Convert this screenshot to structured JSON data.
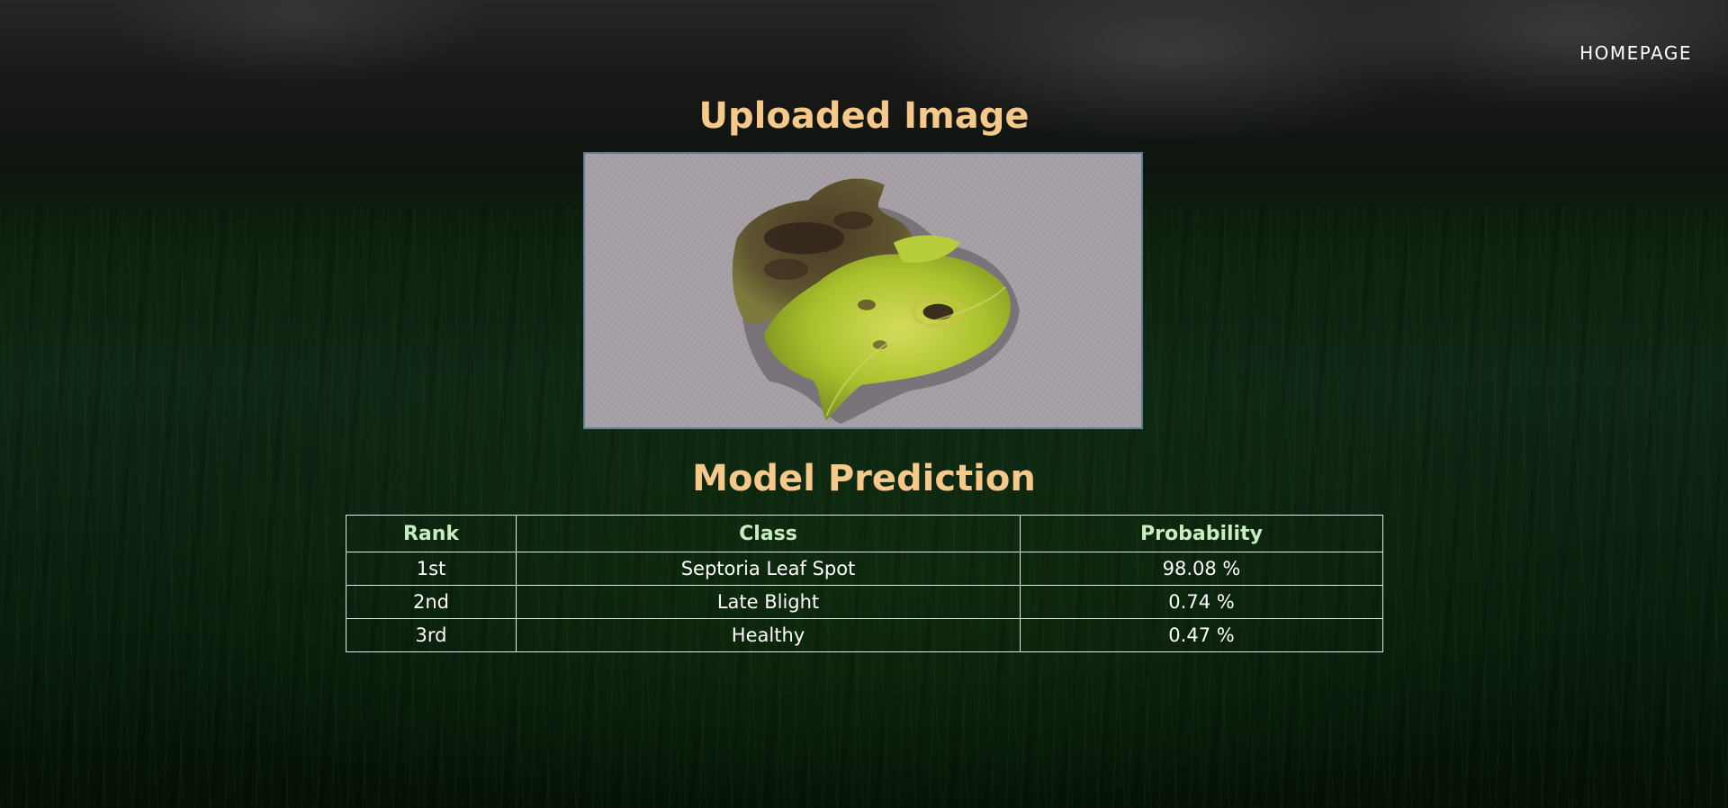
{
  "nav": {
    "homepage_label": "HOMEPAGE"
  },
  "uploaded": {
    "title": "Uploaded Image"
  },
  "prediction": {
    "title": "Model Prediction",
    "columns": [
      "Rank",
      "Class",
      "Probability"
    ],
    "rows": [
      {
        "rank": "1st",
        "class": "Septoria Leaf Spot",
        "probability": "98.08 %"
      },
      {
        "rank": "2nd",
        "class": "Late Blight",
        "probability": "0.74 %"
      },
      {
        "rank": "3rd",
        "class": "Healthy",
        "probability": "0.47 %"
      }
    ]
  },
  "colors": {
    "title": "#f6c98b",
    "table_header": "#c8eec0",
    "image_border": "#5d7f94"
  },
  "icons": {
    "uploaded_image": "leaf-photo"
  }
}
